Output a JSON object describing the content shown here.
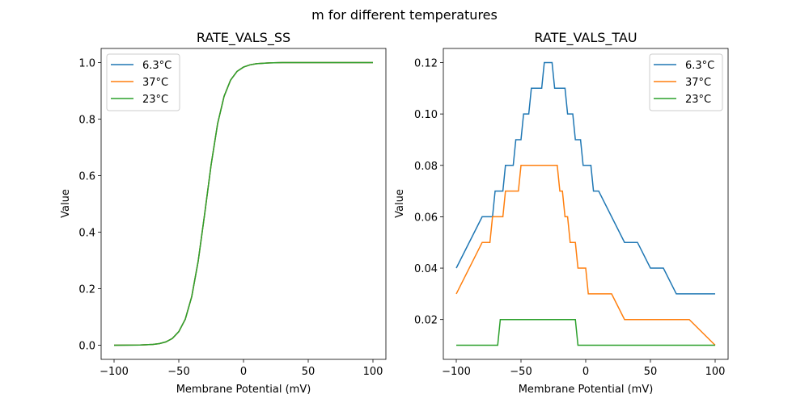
{
  "figure_title": "m for different temperatures",
  "colors": {
    "6.3°C": "#1f77b4",
    "37°C": "#ff7f0e",
    "23°C": "#2ca02c"
  },
  "chart_data": [
    {
      "type": "line",
      "title": "RATE_VALS_SS",
      "xlabel": "Membrane Potential (mV)",
      "ylabel": "Value",
      "xlim": [
        -110,
        110
      ],
      "ylim": [
        -0.05,
        1.05
      ],
      "xticks": [
        -100,
        -50,
        0,
        50,
        100
      ],
      "xtick_labels": [
        "−100",
        "−50",
        "0",
        "50",
        "100"
      ],
      "yticks": [
        0.0,
        0.2,
        0.4,
        0.6,
        0.8,
        1.0
      ],
      "ytick_labels": [
        "0.0",
        "0.2",
        "0.4",
        "0.6",
        "0.8",
        "1.0"
      ],
      "legend": "top-left",
      "grid": false,
      "series": [
        {
          "name": "6.3°C",
          "x": [
            -100,
            -90,
            -80,
            -70,
            -65,
            -60,
            -55,
            -50,
            -45,
            -40,
            -35,
            -30,
            -25,
            -20,
            -15,
            -10,
            -5,
            0,
            5,
            10,
            20,
            30,
            50,
            100
          ],
          "y": [
            0.0,
            0.0002,
            0.0007,
            0.0028,
            0.0058,
            0.0118,
            0.024,
            0.048,
            0.092,
            0.172,
            0.298,
            0.465,
            0.639,
            0.784,
            0.881,
            0.938,
            0.969,
            0.984,
            0.992,
            0.996,
            0.999,
            1.0,
            1.0,
            1.0
          ]
        },
        {
          "name": "37°C",
          "x": [
            -100,
            -90,
            -80,
            -70,
            -65,
            -60,
            -55,
            -50,
            -45,
            -40,
            -35,
            -30,
            -25,
            -20,
            -15,
            -10,
            -5,
            0,
            5,
            10,
            20,
            30,
            50,
            100
          ],
          "y": [
            0.0,
            0.0002,
            0.0007,
            0.0028,
            0.0058,
            0.0118,
            0.024,
            0.048,
            0.092,
            0.172,
            0.298,
            0.465,
            0.639,
            0.784,
            0.881,
            0.938,
            0.969,
            0.984,
            0.992,
            0.996,
            0.999,
            1.0,
            1.0,
            1.0
          ]
        },
        {
          "name": "23°C",
          "x": [
            -100,
            -90,
            -80,
            -70,
            -65,
            -60,
            -55,
            -50,
            -45,
            -40,
            -35,
            -30,
            -25,
            -20,
            -15,
            -10,
            -5,
            0,
            5,
            10,
            20,
            30,
            50,
            100
          ],
          "y": [
            0.0,
            0.0002,
            0.0007,
            0.0028,
            0.0058,
            0.0118,
            0.024,
            0.048,
            0.092,
            0.172,
            0.298,
            0.465,
            0.639,
            0.784,
            0.881,
            0.938,
            0.969,
            0.984,
            0.992,
            0.996,
            0.999,
            1.0,
            1.0,
            1.0
          ]
        }
      ]
    },
    {
      "type": "line",
      "title": "RATE_VALS_TAU",
      "xlabel": "Membrane Potential (mV)",
      "ylabel": "Value",
      "xlim": [
        -110,
        110
      ],
      "ylim": [
        0.0045,
        0.1255
      ],
      "xticks": [
        -100,
        -50,
        0,
        50,
        100
      ],
      "xtick_labels": [
        "−100",
        "−50",
        "0",
        "50",
        "100"
      ],
      "yticks": [
        0.02,
        0.04,
        0.06,
        0.08,
        0.1,
        0.12
      ],
      "ytick_labels": [
        "0.02",
        "0.04",
        "0.06",
        "0.08",
        "0.10",
        "0.12"
      ],
      "legend": "top-right",
      "grid": false,
      "series": [
        {
          "name": "6.3°C",
          "x": [
            -100,
            -80,
            -72,
            -70,
            -64,
            -62,
            -56,
            -54,
            -50,
            -48,
            -44,
            -42,
            -34,
            -32,
            -26,
            -24,
            -16,
            -14,
            -10,
            -8,
            -4,
            -2,
            4,
            6,
            10,
            30,
            40,
            50,
            60,
            70,
            100
          ],
          "y": [
            0.04,
            0.06,
            0.06,
            0.07,
            0.07,
            0.08,
            0.08,
            0.09,
            0.09,
            0.1,
            0.1,
            0.11,
            0.11,
            0.12,
            0.12,
            0.11,
            0.11,
            0.1,
            0.1,
            0.09,
            0.09,
            0.08,
            0.08,
            0.07,
            0.07,
            0.05,
            0.05,
            0.04,
            0.04,
            0.03,
            0.03
          ]
        },
        {
          "name": "37°C",
          "x": [
            -100,
            -80,
            -74,
            -72,
            -64,
            -62,
            -52,
            -50,
            -22,
            -20,
            -18,
            -16,
            -14,
            -12,
            -8,
            -6,
            0,
            2,
            20,
            30,
            80,
            100
          ],
          "y": [
            0.03,
            0.05,
            0.05,
            0.06,
            0.06,
            0.07,
            0.07,
            0.08,
            0.08,
            0.07,
            0.07,
            0.06,
            0.06,
            0.05,
            0.05,
            0.04,
            0.04,
            0.03,
            0.03,
            0.02,
            0.02,
            0.01
          ]
        },
        {
          "name": "23°C",
          "x": [
            -100,
            -68,
            -66,
            -8,
            -6,
            100
          ],
          "y": [
            0.01,
            0.01,
            0.02,
            0.02,
            0.01,
            0.01
          ]
        }
      ]
    }
  ]
}
